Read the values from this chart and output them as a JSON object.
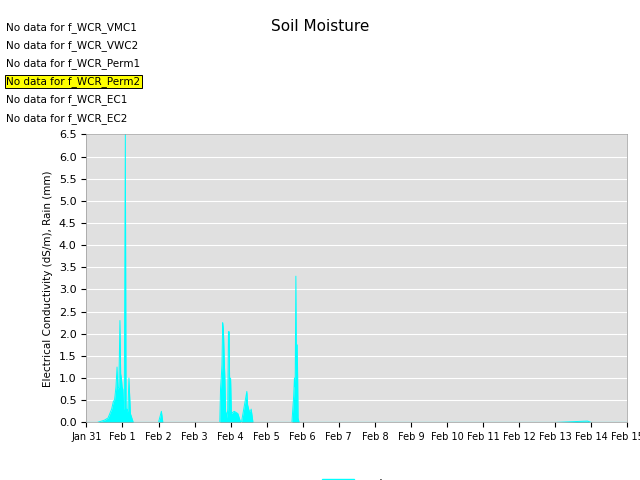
{
  "title": "Soil Moisture",
  "ylabel": "Electrical Conductivity (dS/m), Rain (mm)",
  "no_data_labels": [
    "No data for f_WCR_VMC1",
    "No data for f_WCR_VWC2",
    "No data for f_WCR_Perm1",
    "No data for f_WCR_Perm2",
    "No data for f_WCR_EC1",
    "No data for f_WCR_EC2"
  ],
  "highlight_index": 3,
  "ylim": [
    0.0,
    6.5
  ],
  "yticks": [
    0.0,
    0.5,
    1.0,
    1.5,
    2.0,
    2.5,
    3.0,
    3.5,
    4.0,
    4.5,
    5.0,
    5.5,
    6.0,
    6.5
  ],
  "rain_color": "#00FFFF",
  "plot_bg_color": "#e0e0e0",
  "legend_label": "Rain",
  "x_labels": [
    "Jan 31",
    "Feb 1",
    "Feb 2",
    "Feb 3",
    "Feb 4",
    "Feb 5",
    "Feb 6",
    "Feb 7",
    "Feb 8",
    "Feb 9",
    "Feb 10",
    "Feb 11",
    "Feb 12",
    "Feb 13",
    "Feb 14",
    "Feb 15"
  ],
  "rain_data": [
    [
      0.0,
      0.0
    ],
    [
      0.3,
      0.0
    ],
    [
      0.5,
      0.05
    ],
    [
      0.6,
      0.1
    ],
    [
      0.65,
      0.2
    ],
    [
      0.7,
      0.3
    ],
    [
      0.75,
      0.48
    ],
    [
      0.78,
      0.5
    ],
    [
      0.82,
      0.8
    ],
    [
      0.85,
      1.25
    ],
    [
      0.87,
      0.75
    ],
    [
      0.9,
      0.8
    ],
    [
      0.93,
      2.3
    ],
    [
      0.95,
      1.1
    ],
    [
      0.97,
      1.0
    ],
    [
      0.99,
      0.8
    ],
    [
      1.01,
      0.75
    ],
    [
      1.03,
      0.3
    ],
    [
      1.05,
      0.2
    ],
    [
      1.08,
      6.5
    ],
    [
      1.1,
      0.1
    ],
    [
      1.12,
      0.3
    ],
    [
      1.15,
      0.25
    ],
    [
      1.18,
      1.0
    ],
    [
      1.22,
      0.2
    ],
    [
      1.3,
      0.0
    ],
    [
      1.5,
      0.0
    ],
    [
      1.7,
      0.0
    ],
    [
      1.9,
      0.0
    ],
    [
      2.0,
      0.0
    ],
    [
      2.08,
      0.25
    ],
    [
      2.12,
      0.0
    ],
    [
      2.3,
      0.0
    ],
    [
      2.5,
      0.0
    ],
    [
      2.7,
      0.0
    ],
    [
      2.9,
      0.0
    ],
    [
      3.0,
      0.0
    ],
    [
      3.5,
      0.0
    ],
    [
      3.7,
      0.0
    ],
    [
      3.72,
      0.75
    ],
    [
      3.74,
      1.0
    ],
    [
      3.76,
      1.3
    ],
    [
      3.78,
      2.25
    ],
    [
      3.8,
      2.1
    ],
    [
      3.82,
      1.5
    ],
    [
      3.84,
      1.0
    ],
    [
      3.86,
      0.25
    ],
    [
      3.88,
      0.2
    ],
    [
      3.9,
      0.1
    ],
    [
      3.92,
      0.3
    ],
    [
      3.94,
      2.05
    ],
    [
      3.96,
      2.05
    ],
    [
      3.98,
      0.2
    ],
    [
      4.0,
      1.0
    ],
    [
      4.02,
      0.2
    ],
    [
      4.1,
      0.25
    ],
    [
      4.2,
      0.2
    ],
    [
      4.28,
      0.0
    ],
    [
      4.3,
      0.0
    ],
    [
      4.45,
      0.7
    ],
    [
      4.47,
      0.4
    ],
    [
      4.5,
      0.3
    ],
    [
      4.52,
      0.25
    ],
    [
      4.55,
      0.25
    ],
    [
      4.57,
      0.3
    ],
    [
      4.62,
      0.0
    ],
    [
      4.7,
      0.0
    ],
    [
      4.8,
      0.0
    ],
    [
      4.9,
      0.0
    ],
    [
      5.0,
      0.0
    ],
    [
      5.5,
      0.0
    ],
    [
      5.6,
      0.0
    ],
    [
      5.7,
      0.0
    ],
    [
      5.75,
      0.6
    ],
    [
      5.77,
      1.0
    ],
    [
      5.79,
      0.8
    ],
    [
      5.81,
      3.3
    ],
    [
      5.83,
      0.05
    ],
    [
      5.85,
      1.75
    ],
    [
      5.87,
      0.1
    ],
    [
      5.9,
      0.0
    ],
    [
      6.0,
      0.0
    ],
    [
      7.0,
      0.0
    ],
    [
      8.0,
      0.0
    ],
    [
      9.0,
      0.0
    ],
    [
      10.0,
      0.0
    ],
    [
      11.0,
      0.0
    ],
    [
      12.0,
      0.0
    ],
    [
      13.0,
      0.0
    ],
    [
      13.9,
      0.03
    ],
    [
      14.0,
      0.0
    ],
    [
      15.0,
      0.0
    ]
  ]
}
